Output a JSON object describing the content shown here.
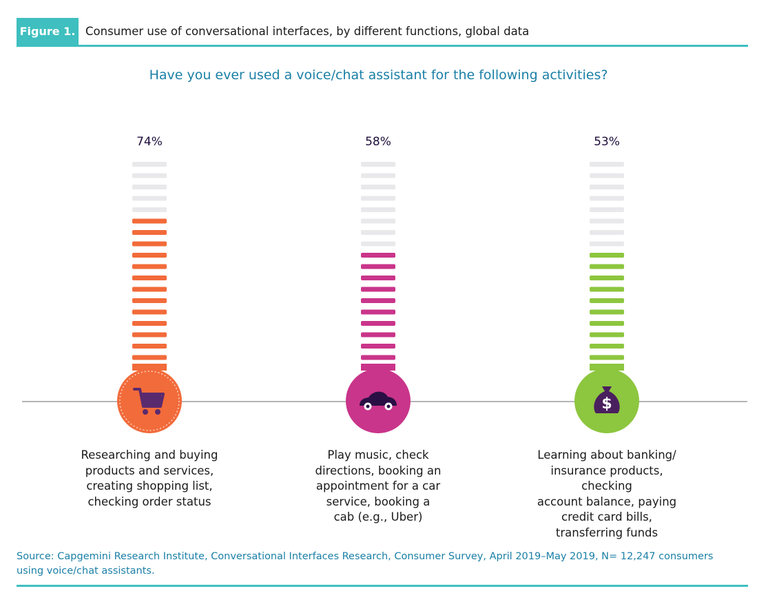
{
  "figure": {
    "label": "Figure 1.",
    "title": "Consumer use of conversational interfaces, by different functions, global data"
  },
  "question": "Have you ever used a voice/chat assistant for the following activities?",
  "chart_data": {
    "type": "bar",
    "categories": [
      "Researching and buying products and services, creating shopping list, checking order status",
      "Play music, check directions, booking an appointment for a car service, booking a cab (e.g., Uber)",
      "Learning about banking/ insurance products, checking account balance, paying credit card bills, transferring funds"
    ],
    "values": [
      74,
      58,
      53
    ],
    "value_labels": [
      "74%",
      "58%",
      "53%"
    ],
    "ylim": [
      0,
      100
    ],
    "colors": [
      "#f26b3a",
      "#c9358a",
      "#8dc63f"
    ],
    "empty_color": "#e9e9eb",
    "icons": [
      "shopping-cart-icon",
      "car-icon",
      "money-bag-icon"
    ],
    "grid": false
  },
  "captions": [
    [
      "Researching and buying",
      "products and services,",
      "creating shopping list,",
      "checking order status"
    ],
    [
      "Play music, check",
      "directions, booking an",
      "appointment for a car",
      "service, booking a",
      "cab (e.g., Uber)"
    ],
    [
      "Learning about banking/",
      "insurance products, checking",
      "account balance, paying",
      "credit card bills,",
      "transferring funds"
    ]
  ],
  "source": "Source: Capgemini Research Institute, Conversational Interfaces Research, Consumer Survey, April 2019–May 2019, N= 12,247 consumers using voice/chat assistants."
}
